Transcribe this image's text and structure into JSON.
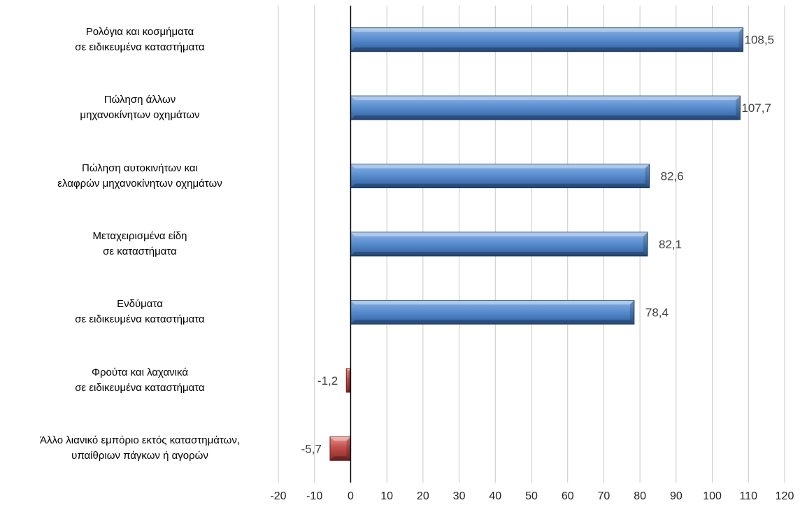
{
  "chart_data": {
    "type": "bar",
    "orientation": "horizontal",
    "categories": [
      [
        "Ρολόγια και κοσμήματα",
        "σε ειδικευμένα καταστήματα"
      ],
      [
        "Πώληση άλλων",
        "μηχανοκίνητων οχημάτων"
      ],
      [
        "Πώληση αυτοκινήτων και",
        "ελαφρών μηχανοκίνητων οχημάτων"
      ],
      [
        "Μεταχειρισμένα είδη",
        "σε καταστήματα"
      ],
      [
        "Ενδύματα",
        "σε ειδικευμένα καταστήματα"
      ],
      [
        "Φρούτα και λαχανικά",
        "σε ειδικευμένα καταστήματα"
      ],
      [
        "Άλλο λιανικό εμπόριο εκτός καταστημάτων,",
        "υπαίθριων πάγκων ή αγορών"
      ]
    ],
    "values": [
      108.5,
      107.7,
      82.6,
      82.1,
      78.4,
      -1.2,
      -5.7
    ],
    "data_labels": [
      "108,5",
      "107,7",
      "82,6",
      "82,1",
      "78,4",
      "-1,2",
      "-5,7"
    ],
    "xlim": [
      -20,
      120
    ],
    "xticks": [
      "-20",
      "-10",
      "0",
      "10",
      "20",
      "30",
      "40",
      "50",
      "60",
      "70",
      "80",
      "90",
      "100",
      "110",
      "120"
    ],
    "grid": true,
    "legend": "none",
    "colors": {
      "positive": "#4a7ebf",
      "negative": "#c0504d",
      "grid": "#c8c8c8",
      "axis": "#000000"
    }
  }
}
